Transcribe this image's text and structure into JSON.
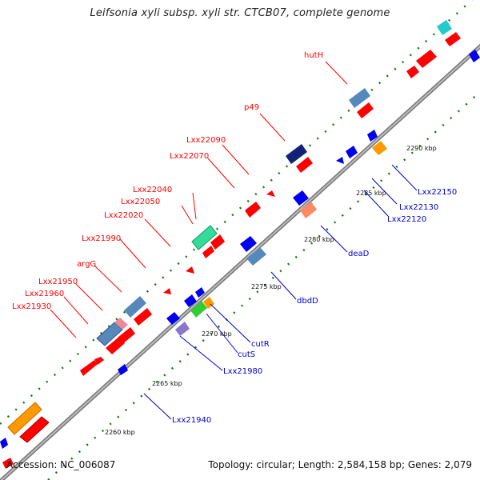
{
  "title": "Leifsonia xyli subsp. xyli str. CTCB07, complete genome",
  "accession": "Accession: NC_006087",
  "summary": "Topology: circular; Length: 2,584,158 bp; Genes: 2,079",
  "tick_labels": [
    "2260 kbp",
    "2265 kbp",
    "2270 kbp",
    "2275 kbp",
    "2280 kbp",
    "2285 kbp",
    "2290 kbp"
  ],
  "upper_labels": [
    "hutH",
    "p49",
    "Lxx22090",
    "Lxx22070",
    "Lxx22040",
    "Lxx22050",
    "Lxx22020",
    "Lxx21990",
    "argG",
    "Lxx21950",
    "Lxx21960",
    "Lxx21930"
  ],
  "lower_labels": [
    "Lxx22150",
    "Lxx22130",
    "Lxx22120",
    "deaD",
    "dbdD",
    "cutR",
    "cutS",
    "Lxx21980",
    "Lxx21940"
  ],
  "colors": {
    "label_upper": "#ff0000",
    "label_lower": "#0000cc",
    "backbone": "#888888",
    "gc_dots": "#007700"
  }
}
